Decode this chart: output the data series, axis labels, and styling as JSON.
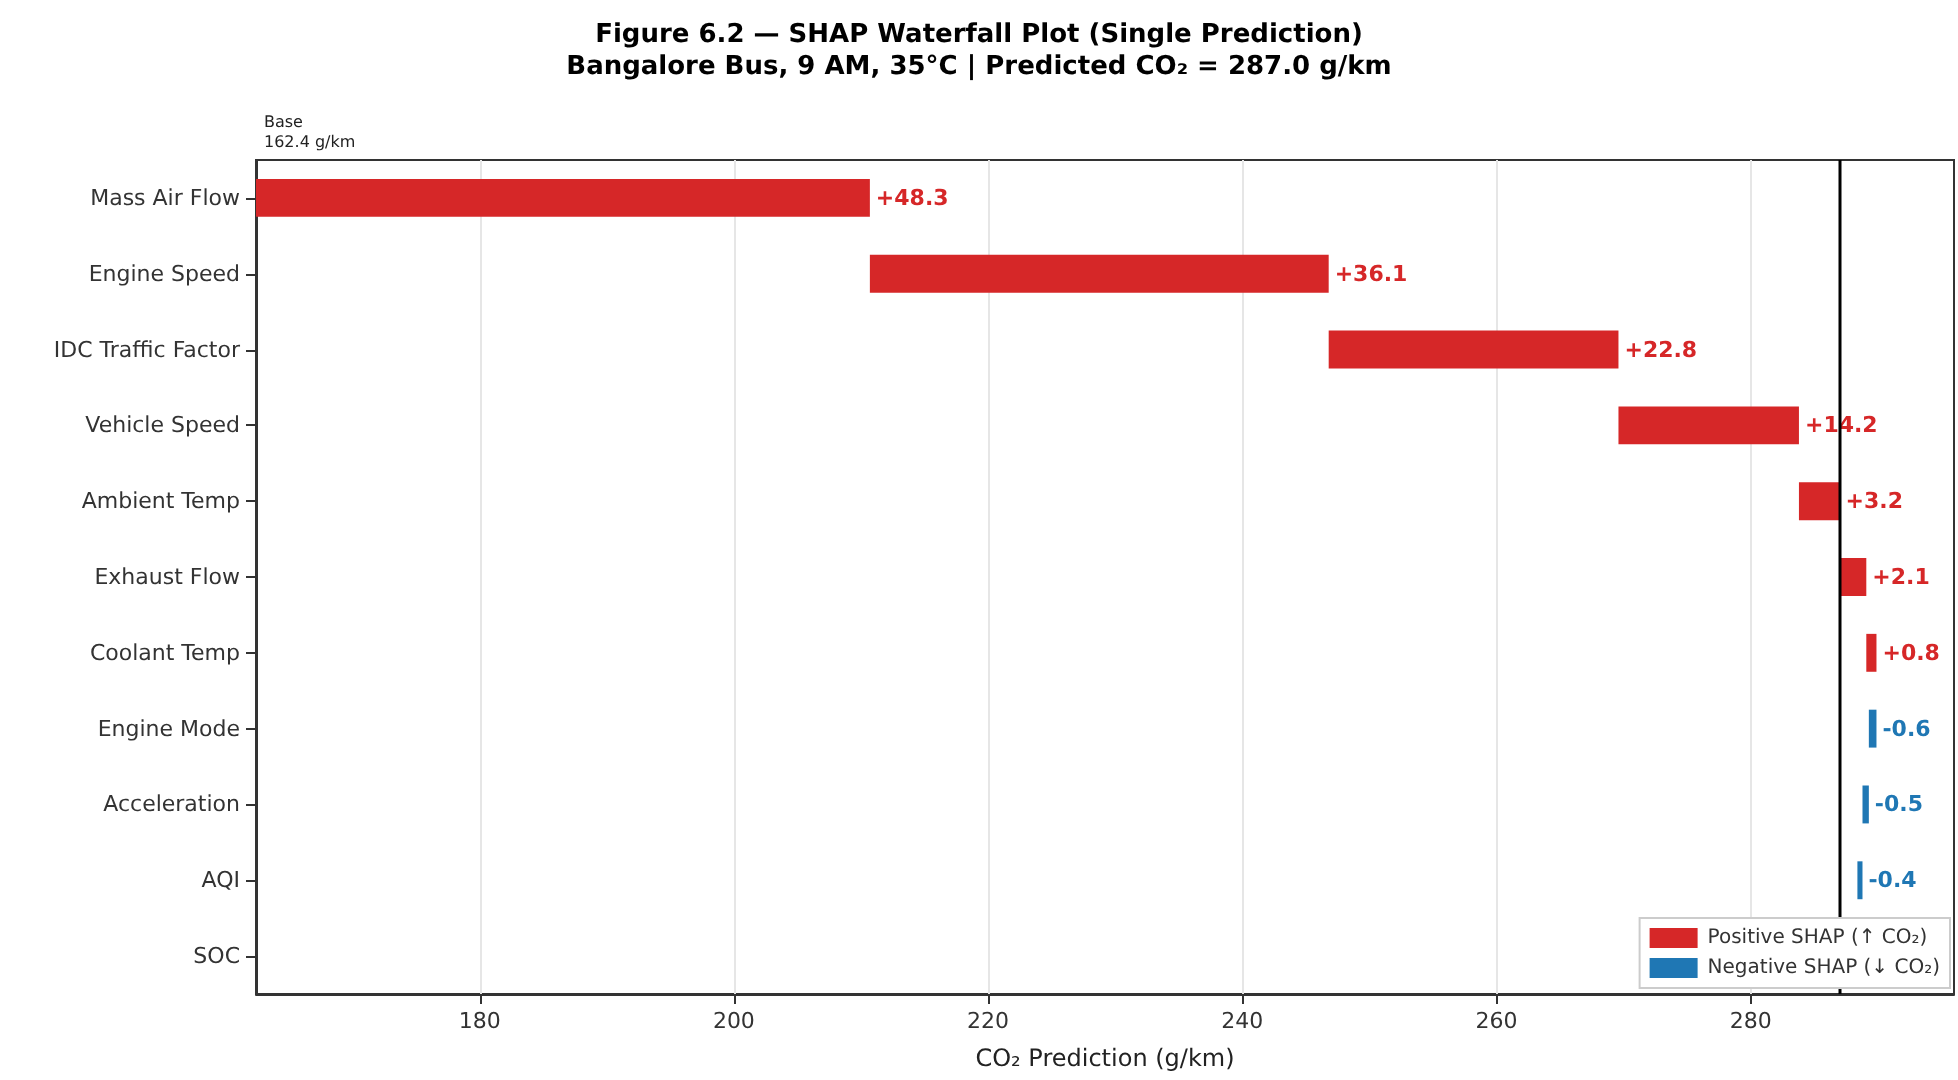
{
  "chart_data": {
    "type": "bar",
    "orientation": "horizontal",
    "title": "Figure 6.2 — SHAP Waterfall Plot (Single Prediction)",
    "subtitle": "Bangalore Bus, 9 AM, 35°C | Predicted CO₂ = 287.0 g/km",
    "xlabel": "CO₂ Prediction (g/km)",
    "categories": [
      "Mass Air Flow",
      "Engine Speed",
      "IDC Traffic Factor",
      "Vehicle Speed",
      "Ambient Temp",
      "Exhaust Flow",
      "Coolant Temp",
      "Engine Mode",
      "Acceleration",
      "AQI",
      "SOC"
    ],
    "series": [
      {
        "name": "Positive SHAP (↑ CO₂)",
        "color": "#d62728",
        "base": [
          162.4,
          210.7,
          246.8,
          269.6,
          283.8,
          287.0,
          289.1,
          null,
          null,
          null,
          null
        ],
        "values": [
          48.3,
          36.1,
          22.8,
          14.2,
          3.2,
          2.1,
          0.8,
          null,
          null,
          null,
          null
        ],
        "value_labels": [
          "+48.3",
          "+36.1",
          "+22.8",
          "+14.2",
          "+3.2",
          "+2.1",
          "+0.8",
          null,
          null,
          null,
          null
        ]
      },
      {
        "name": "Negative SHAP (↓ CO₂)",
        "color": "#1f77b4",
        "base": [
          null,
          null,
          null,
          null,
          null,
          null,
          null,
          289.9,
          289.3,
          288.8,
          null
        ],
        "values": [
          null,
          null,
          null,
          null,
          null,
          null,
          null,
          -0.6,
          -0.5,
          -0.4,
          null
        ],
        "value_labels": [
          null,
          null,
          null,
          null,
          null,
          null,
          null,
          "-0.6",
          "-0.5",
          "-0.4",
          null
        ]
      }
    ],
    "xlim": [
      162.4,
      296
    ],
    "xticks": [
      180,
      200,
      220,
      240,
      260,
      280
    ],
    "grid": "x",
    "legend": "bottom right",
    "ref_lines": [
      {
        "axis": "x",
        "value": 287.0,
        "label": null,
        "color": "#000000"
      }
    ],
    "annotations": [
      "Base\n162.4 g/km"
    ]
  }
}
